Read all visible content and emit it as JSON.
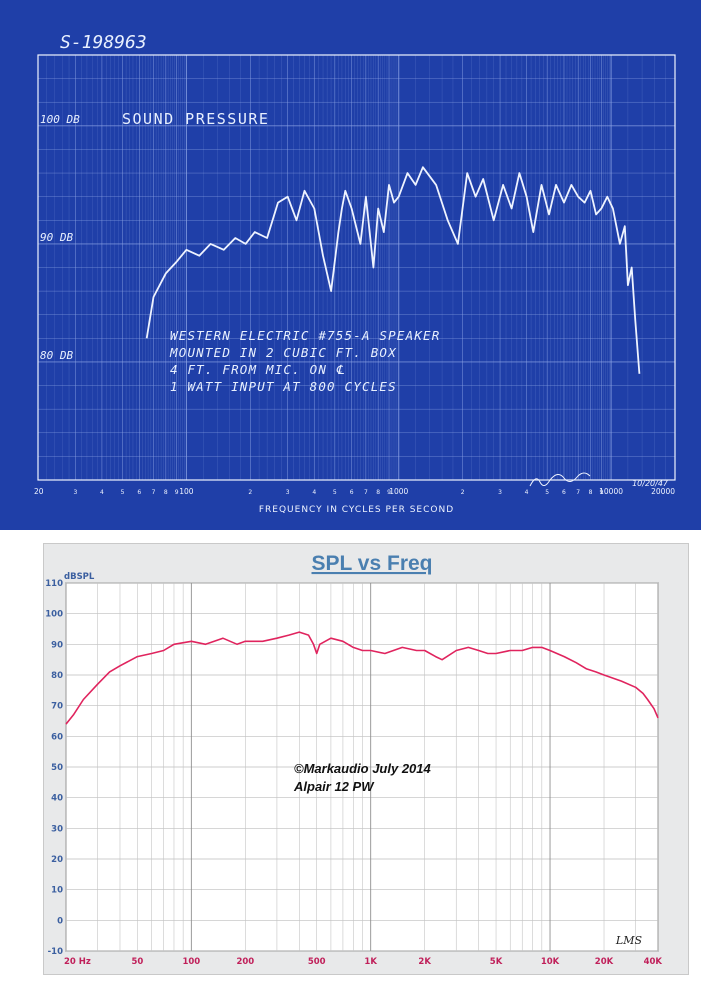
{
  "blueprint": {
    "doc_number": "S-198963",
    "title": "Sound Pressure",
    "y_labels": [
      {
        "text": "100 DB",
        "value": 100
      },
      {
        "text": "90 DB",
        "value": 90
      },
      {
        "text": "80 DB",
        "value": 80
      }
    ],
    "note_lines": [
      "WESTERN ELECTRIC #755-A SPEAKER",
      "MOUNTED IN 2 CUBIC FT. BOX",
      "4 FT. FROM MIC. ON ℄",
      "1 WATT INPUT AT 800 CYCLES"
    ],
    "signature_date": "10/20/47",
    "xlabel": "FREQUENCY IN CYCLES PER SECOND",
    "colors": {
      "background": "#1f3fa8",
      "grid": "#8fa6e6",
      "ink": "#eef3ff"
    }
  },
  "spl": {
    "title": "SPL vs Freq",
    "ylabel": "dBSPL",
    "annotation_lines": [
      "©Markaudio July 2014",
      "Alpair 12 PW"
    ],
    "watermark": "LMS",
    "colors": {
      "title": "#4a7fb0",
      "curve": "#e0245e",
      "tick_y": "#3b5fa0",
      "tick_x": "#c0205a"
    }
  },
  "chart_data": [
    {
      "type": "line",
      "title": "Sound Pressure",
      "xlabel": "FREQUENCY IN CYCLES PER SECOND",
      "ylabel": "",
      "x_scale": "log",
      "xlim": [
        20,
        20000
      ],
      "ylim": [
        70,
        106
      ],
      "x_ticks": [
        {
          "value": 20,
          "label": "20"
        },
        {
          "value": 30,
          "label": "3"
        },
        {
          "value": 40,
          "label": "4"
        },
        {
          "value": 50,
          "label": "5"
        },
        {
          "value": 60,
          "label": "6"
        },
        {
          "value": 70,
          "label": "7"
        },
        {
          "value": 80,
          "label": "8"
        },
        {
          "value": 90,
          "label": "9"
        },
        {
          "value": 100,
          "label": "100"
        },
        {
          "value": 200,
          "label": "2"
        },
        {
          "value": 300,
          "label": "3"
        },
        {
          "value": 400,
          "label": "4"
        },
        {
          "value": 500,
          "label": "5"
        },
        {
          "value": 600,
          "label": "6"
        },
        {
          "value": 700,
          "label": "7"
        },
        {
          "value": 800,
          "label": "8"
        },
        {
          "value": 900,
          "label": "9"
        },
        {
          "value": 1000,
          "label": "1000"
        },
        {
          "value": 2000,
          "label": "2"
        },
        {
          "value": 3000,
          "label": "3"
        },
        {
          "value": 4000,
          "label": "4"
        },
        {
          "value": 5000,
          "label": "5"
        },
        {
          "value": 6000,
          "label": "6"
        },
        {
          "value": 7000,
          "label": "7"
        },
        {
          "value": 8000,
          "label": "8"
        },
        {
          "value": 9000,
          "label": "9"
        },
        {
          "value": 10000,
          "label": "10000"
        },
        {
          "value": 20000,
          "label": "20000"
        }
      ],
      "series": [
        {
          "name": "",
          "x": [
            65,
            70,
            80,
            90,
            100,
            115,
            130,
            150,
            170,
            190,
            210,
            240,
            270,
            300,
            330,
            360,
            400,
            440,
            480,
            520,
            540,
            560,
            600,
            660,
            700,
            760,
            800,
            850,
            900,
            950,
            1000,
            1100,
            1200,
            1300,
            1500,
            1700,
            1900,
            2100,
            2300,
            2500,
            2800,
            3100,
            3400,
            3700,
            4000,
            4300,
            4700,
            5100,
            5500,
            6000,
            6500,
            7000,
            7500,
            8000,
            8500,
            9000,
            9600,
            10200,
            11000,
            11600,
            12000,
            12500,
            13000,
            13600
          ],
          "y": [
            82,
            85.5,
            87.5,
            88.5,
            89.5,
            89,
            90,
            89.5,
            90.5,
            90,
            91,
            90.5,
            93.5,
            94,
            92,
            94.5,
            93,
            89,
            86,
            91,
            93,
            94.5,
            93,
            90,
            94,
            88,
            93,
            91,
            95,
            93.5,
            94,
            96,
            95,
            96.5,
            95,
            92,
            90,
            96,
            94,
            95.5,
            92,
            95,
            93,
            96,
            94,
            91,
            95,
            92.5,
            95,
            93.5,
            95,
            94,
            93.5,
            94.5,
            92.5,
            93,
            94,
            93,
            90,
            91.5,
            86.5,
            88,
            83.5,
            79
          ]
        }
      ]
    },
    {
      "type": "line",
      "title": "SPL vs Freq",
      "xlabel": "",
      "ylabel": "dBSPL",
      "x_scale": "log",
      "xlim": [
        20,
        40000
      ],
      "ylim": [
        -10,
        110
      ],
      "y_ticks": [
        -10,
        0,
        10,
        20,
        30,
        40,
        50,
        60,
        70,
        80,
        90,
        100,
        110
      ],
      "x_ticks": [
        {
          "value": 20,
          "label": "20 Hz"
        },
        {
          "value": 50,
          "label": "50"
        },
        {
          "value": 100,
          "label": "100"
        },
        {
          "value": 200,
          "label": "200"
        },
        {
          "value": 500,
          "label": "500"
        },
        {
          "value": 1000,
          "label": "1K"
        },
        {
          "value": 2000,
          "label": "2K"
        },
        {
          "value": 5000,
          "label": "5K"
        },
        {
          "value": 10000,
          "label": "10K"
        },
        {
          "value": 20000,
          "label": "20K"
        },
        {
          "value": 40000,
          "label": "40K"
        }
      ],
      "series": [
        {
          "name": "",
          "x": [
            20,
            22,
            25,
            30,
            35,
            40,
            50,
            60,
            70,
            80,
            100,
            120,
            150,
            180,
            200,
            250,
            300,
            350,
            400,
            450,
            480,
            500,
            520,
            600,
            700,
            800,
            900,
            1000,
            1200,
            1500,
            1800,
            2000,
            2300,
            2500,
            3000,
            3500,
            4000,
            4500,
            5000,
            6000,
            7000,
            8000,
            9000,
            10000,
            12000,
            14000,
            16000,
            18000,
            20000,
            25000,
            30000,
            33000,
            35000,
            38000,
            40000
          ],
          "y": [
            64,
            67,
            72,
            77,
            81,
            83,
            86,
            87,
            88,
            90,
            91,
            90,
            92,
            90,
            91,
            91,
            92,
            93,
            94,
            93,
            90,
            87,
            90,
            92,
            91,
            89,
            88,
            88,
            87,
            89,
            88,
            88,
            86,
            85,
            88,
            89,
            88,
            87,
            87,
            88,
            88,
            89,
            89,
            88,
            86,
            84,
            82,
            81,
            80,
            78,
            76,
            74,
            72,
            69,
            66
          ]
        }
      ]
    }
  ]
}
